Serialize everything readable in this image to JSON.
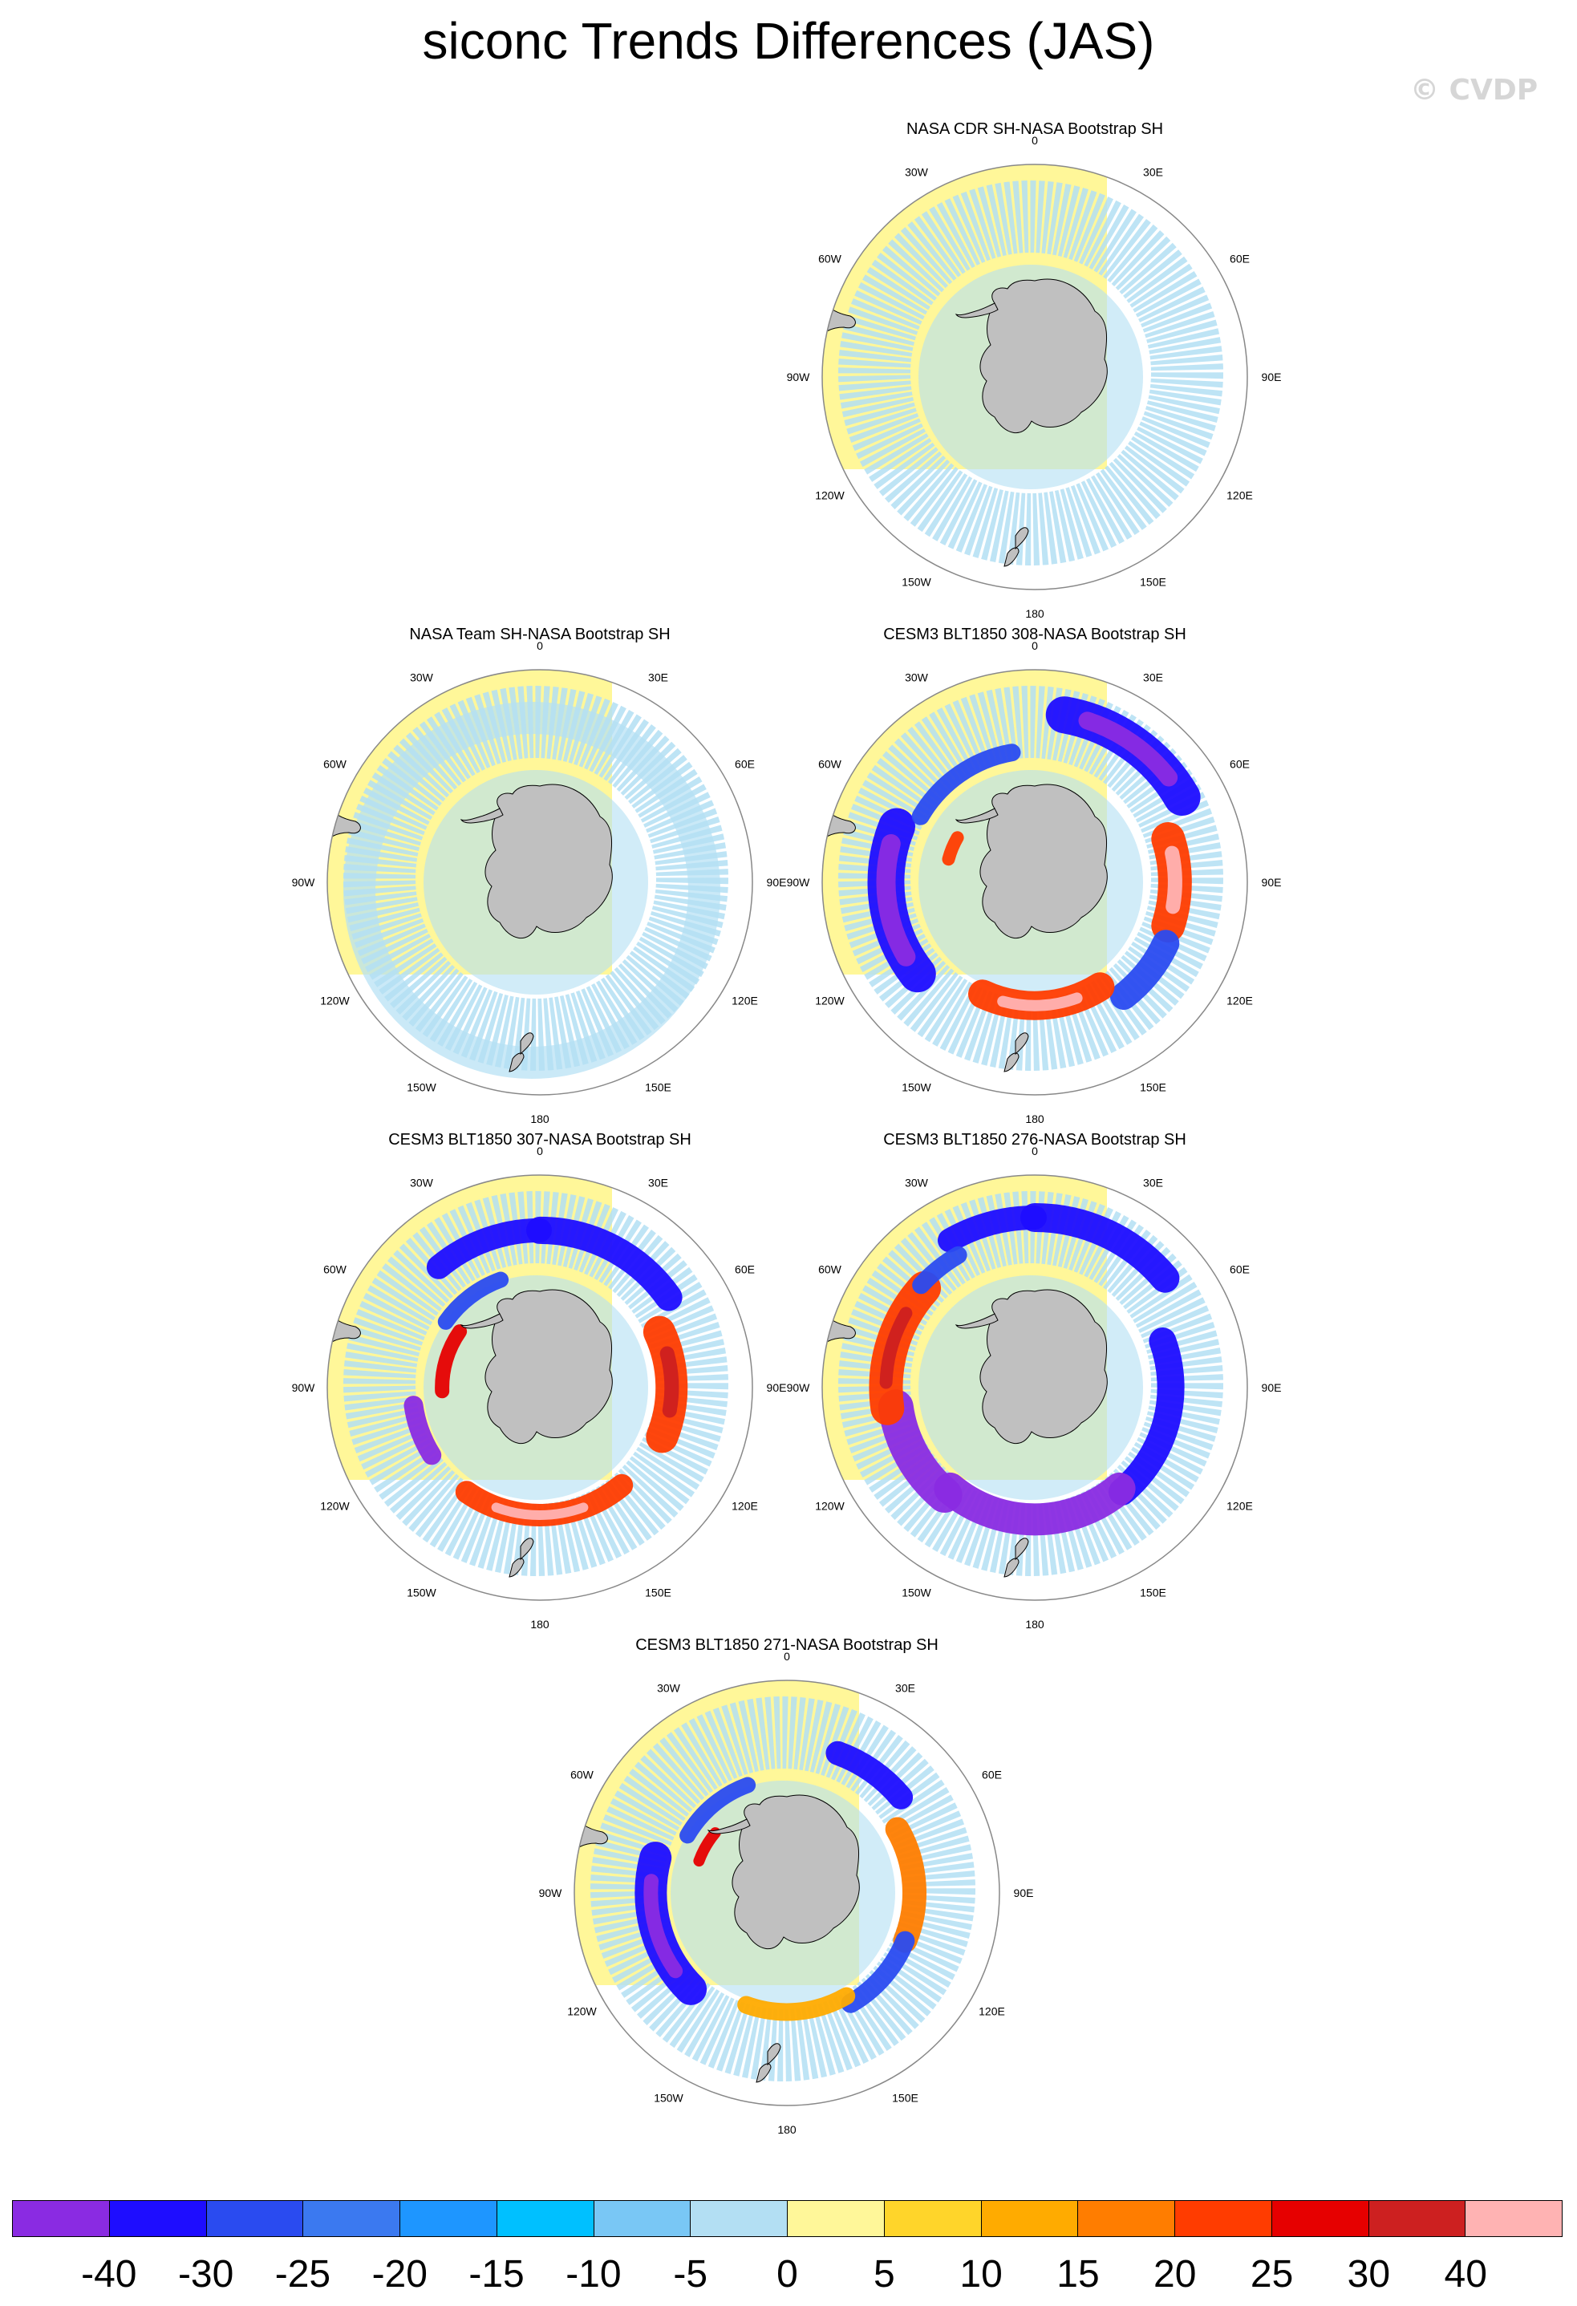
{
  "title": "siconc Trends Differences (JAS)",
  "watermark": "© CVDP",
  "panels": [
    {
      "title": "NASA CDR SH-NASA Bootstrap SH",
      "pattern": "cdr"
    },
    {
      "title": "NASA Team SH-NASA Bootstrap SH",
      "pattern": "team"
    },
    {
      "title": "CESM3 BLT1850 308-NASA Bootstrap SH",
      "pattern": "m308"
    },
    {
      "title": "CESM3 BLT1850 307-NASA Bootstrap SH",
      "pattern": "m307"
    },
    {
      "title": "CESM3 BLT1850 276-NASA Bootstrap SH",
      "pattern": "m276"
    },
    {
      "title": "CESM3 BLT1850 271-NASA Bootstrap SH",
      "pattern": "m271"
    }
  ],
  "longitude_labels": [
    "0",
    "30E",
    "60E",
    "90E",
    "120E",
    "150E",
    "180",
    "150W",
    "120W",
    "90W",
    "60W",
    "30W"
  ],
  "colors": {
    "land": "#c0c0c0",
    "background": "#fff799",
    "boxes": [
      "#8a2be2",
      "#1e0dff",
      "#2a4bf0",
      "#3b79f0",
      "#1e96ff",
      "#00c0ff",
      "#79c7f5",
      "#b3dff3",
      "#fff799",
      "#ffd52a",
      "#ffab00",
      "#ff7d00",
      "#ff3c00",
      "#e60000",
      "#cd2020",
      "#ffb3b3"
    ]
  },
  "colorbar": {
    "labels": [
      "-40",
      "-30",
      "-25",
      "-20",
      "-15",
      "-10",
      "-5",
      "0",
      "5",
      "10",
      "15",
      "20",
      "25",
      "30",
      "40"
    ]
  }
}
